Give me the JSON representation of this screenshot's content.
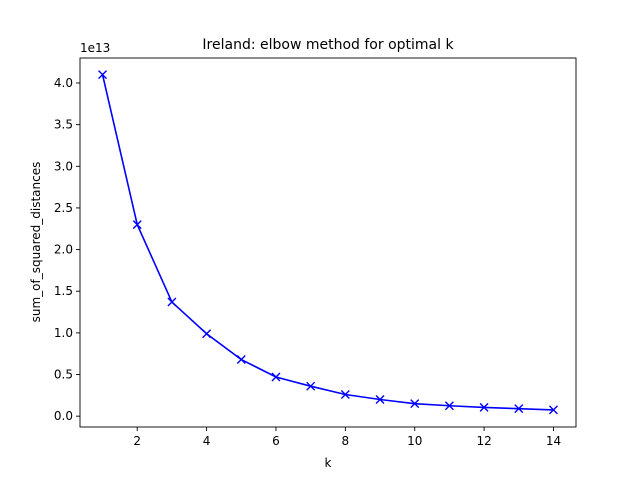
{
  "chart_data": {
    "type": "line",
    "title": "Ireland: elbow method for optimal k",
    "xlabel": "k",
    "ylabel": "sum_of_squared_distances",
    "y_offset_text": "1e13",
    "xlim": [
      0.35,
      14.65
    ],
    "ylim": [
      -0.13,
      4.3
    ],
    "x_ticks": [
      2,
      4,
      6,
      8,
      10,
      12,
      14
    ],
    "x_tick_labels": [
      "2",
      "4",
      "6",
      "8",
      "10",
      "12",
      "14"
    ],
    "y_ticks": [
      0.0,
      0.5,
      1.0,
      1.5,
      2.0,
      2.5,
      3.0,
      3.5,
      4.0
    ],
    "y_tick_labels": [
      "0.0",
      "0.5",
      "1.0",
      "1.5",
      "2.0",
      "2.5",
      "3.0",
      "3.5",
      "4.0"
    ],
    "series": [
      {
        "color": "#0000ff",
        "marker": "x",
        "x": [
          1,
          2,
          3,
          4,
          5,
          6,
          7,
          8,
          9,
          10,
          11,
          12,
          13,
          14
        ],
        "y": [
          4.1,
          2.3,
          1.37,
          0.99,
          0.68,
          0.47,
          0.36,
          0.26,
          0.2,
          0.15,
          0.125,
          0.105,
          0.09,
          0.075
        ]
      }
    ],
    "grid": false,
    "legend": "none"
  }
}
